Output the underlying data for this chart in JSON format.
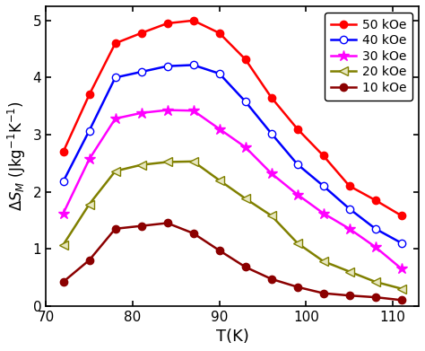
{
  "title": "",
  "xlabel": "T(K)",
  "xlim": [
    70,
    113
  ],
  "ylim": [
    0,
    5.25
  ],
  "xticks": [
    70,
    80,
    90,
    100,
    110
  ],
  "yticks": [
    0,
    1,
    2,
    3,
    4,
    5
  ],
  "series": [
    {
      "label": "50 kOe",
      "color": "#ff0000",
      "marker": "o",
      "markersize": 6,
      "markerfacecolor": "#ff0000",
      "markeredgecolor": "#ff0000",
      "x": [
        72,
        75,
        78,
        81,
        84,
        87,
        90,
        93,
        96,
        99,
        102,
        105,
        108,
        111
      ],
      "y": [
        2.7,
        3.7,
        4.6,
        4.78,
        4.95,
        5.0,
        4.78,
        4.32,
        3.65,
        3.1,
        2.63,
        2.1,
        1.85,
        1.58
      ]
    },
    {
      "label": "40 kOe",
      "color": "#0000ff",
      "marker": "o",
      "markersize": 6,
      "markerfacecolor": "#ffffff",
      "markeredgecolor": "#0000ff",
      "x": [
        72,
        75,
        78,
        81,
        84,
        87,
        90,
        93,
        96,
        99,
        102,
        105,
        108,
        111
      ],
      "y": [
        2.18,
        3.07,
        4.0,
        4.1,
        4.2,
        4.22,
        4.07,
        3.58,
        3.02,
        2.48,
        2.1,
        1.7,
        1.35,
        1.1
      ]
    },
    {
      "label": "30 kOe",
      "color": "#ff00ff",
      "marker": "*",
      "markersize": 9,
      "markerfacecolor": "#ff00ff",
      "markeredgecolor": "#ff00ff",
      "x": [
        72,
        75,
        78,
        81,
        84,
        87,
        90,
        93,
        96,
        99,
        102,
        105,
        108,
        111
      ],
      "y": [
        1.62,
        2.57,
        3.28,
        3.38,
        3.43,
        3.42,
        3.1,
        2.78,
        2.32,
        1.95,
        1.62,
        1.35,
        1.03,
        0.65
      ]
    },
    {
      "label": "20 kOe",
      "color": "#808000",
      "marker": "<",
      "markersize": 7,
      "markerfacecolor": "#e8e8c0",
      "markeredgecolor": "#808000",
      "x": [
        72,
        75,
        78,
        81,
        84,
        87,
        90,
        93,
        96,
        99,
        102,
        105,
        108,
        111
      ],
      "y": [
        1.07,
        1.78,
        2.36,
        2.47,
        2.52,
        2.53,
        2.2,
        1.88,
        1.58,
        1.1,
        0.78,
        0.6,
        0.42,
        0.3
      ]
    },
    {
      "label": "10 kOe",
      "color": "#8b0000",
      "marker": "o",
      "markersize": 6,
      "markerfacecolor": "#8b0000",
      "markeredgecolor": "#8b0000",
      "x": [
        72,
        75,
        78,
        81,
        84,
        87,
        90,
        93,
        96,
        99,
        102,
        105,
        108,
        111
      ],
      "y": [
        0.42,
        0.8,
        1.35,
        1.4,
        1.45,
        1.27,
        0.97,
        0.68,
        0.47,
        0.33,
        0.22,
        0.18,
        0.15,
        0.1
      ]
    }
  ],
  "legend_loc": "upper right",
  "background_color": "#ffffff"
}
